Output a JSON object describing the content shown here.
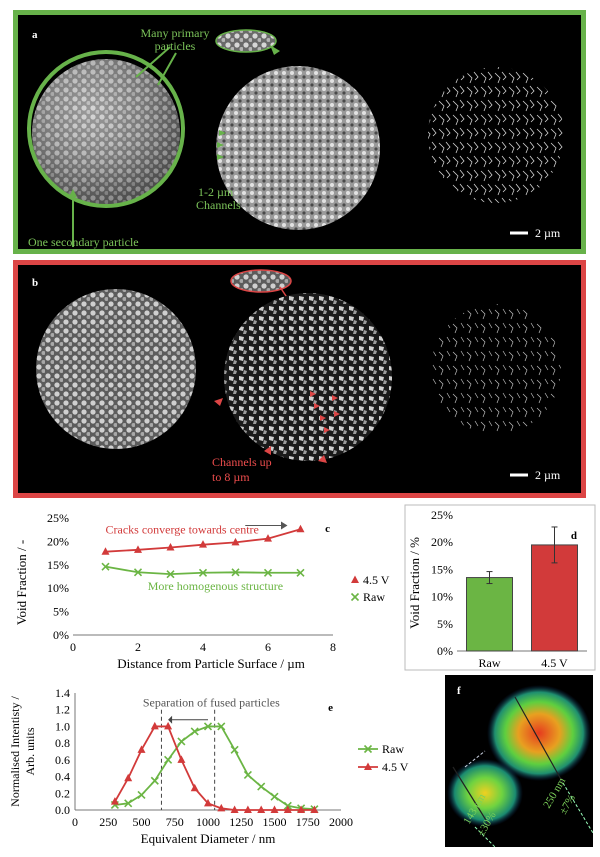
{
  "panel_a": {
    "label": "a",
    "annotations": {
      "primary": "Many primary particles",
      "secondary": "One secondary particle",
      "channels_line1": "1-2 µm",
      "channels_line2": "Channels"
    },
    "scale_bar": "2 µm"
  },
  "panel_b": {
    "label": "b",
    "annotations": {
      "channels_line1": "Channels up",
      "channels_line2": "to 8 µm"
    },
    "scale_bar": "2 µm"
  },
  "panel_f": {
    "label": "f",
    "ann_left_1": "143 nm",
    "ann_left_2": "±30%",
    "ann_right_1": "250 nm",
    "ann_right_2": "±7%"
  },
  "colors": {
    "green": "#67b24a",
    "red": "#dc4545",
    "raw_series": "#6bb544",
    "v45_series": "#d23a3a"
  },
  "chart_data": [
    {
      "id": "c",
      "type": "line",
      "label": "c",
      "xlabel": "Distance from Particle Surface / µm",
      "ylabel": "Void Fraction / -",
      "xlim": [
        0,
        8
      ],
      "ylim": [
        0,
        25
      ],
      "xticks": [
        "0",
        "2",
        "4",
        "6",
        "8"
      ],
      "yticks": [
        "0%",
        "5%",
        "10%",
        "15%",
        "20%",
        "25%"
      ],
      "annotations": [
        "Cracks converge towards centre",
        "More homogenous structure"
      ],
      "legend_position": "right",
      "series": [
        {
          "name": "4.5 V",
          "marker": "triangle",
          "x": [
            1,
            2,
            3,
            4,
            5,
            6,
            7
          ],
          "y": [
            17.8,
            18.2,
            18.7,
            19.3,
            19.8,
            20.6,
            22.6
          ]
        },
        {
          "name": "Raw",
          "marker": "x",
          "x": [
            1,
            2,
            3,
            4,
            5,
            6,
            7
          ],
          "y": [
            14.6,
            13.4,
            13.0,
            13.3,
            13.4,
            13.3,
            13.3
          ]
        }
      ]
    },
    {
      "id": "d",
      "type": "bar",
      "label": "d",
      "ylabel": "Void Fraction / %",
      "ylim": [
        0,
        25
      ],
      "yticks": [
        "0%",
        "5%",
        "10%",
        "15%",
        "20%",
        "25%"
      ],
      "categories": [
        "Raw",
        "4.5 V"
      ],
      "values": [
        13.5,
        19.5
      ],
      "errors": [
        1.1,
        3.3
      ]
    },
    {
      "id": "e",
      "type": "line",
      "label": "e",
      "xlabel": "Equivalent Diameter / nm",
      "ylabel_line1": "Normalised Intentisty /",
      "ylabel_line2": "Arb. units",
      "xlim": [
        0,
        2000
      ],
      "ylim": [
        0,
        1.4
      ],
      "xticks": [
        "0",
        "250",
        "500",
        "750",
        "1000",
        "1250",
        "1500",
        "1750",
        "2000"
      ],
      "yticks": [
        "0.0",
        "0.2",
        "0.4",
        "0.6",
        "0.8",
        "1.0",
        "1.2",
        "1.4"
      ],
      "annotation": "Separation of fused particles",
      "legend_position": "right",
      "series": [
        {
          "name": "Raw",
          "marker": "x",
          "x": [
            300,
            400,
            500,
            600,
            700,
            800,
            900,
            1000,
            1100,
            1200,
            1300,
            1400,
            1500,
            1600,
            1700,
            1800
          ],
          "y": [
            0.06,
            0.08,
            0.18,
            0.35,
            0.6,
            0.82,
            0.94,
            1.0,
            1.0,
            0.72,
            0.42,
            0.28,
            0.16,
            0.05,
            0.02,
            0.01
          ]
        },
        {
          "name": "4.5 V",
          "marker": "triangle",
          "x": [
            300,
            400,
            500,
            600,
            700,
            800,
            900,
            1000,
            1100,
            1200,
            1300,
            1400,
            1500,
            1600,
            1700,
            1800
          ],
          "y": [
            0.1,
            0.38,
            0.72,
            1.0,
            1.0,
            0.6,
            0.26,
            0.08,
            0.02,
            0.0,
            0.0,
            0.0,
            0.0,
            0.0,
            0.0,
            0.0
          ]
        }
      ]
    }
  ]
}
